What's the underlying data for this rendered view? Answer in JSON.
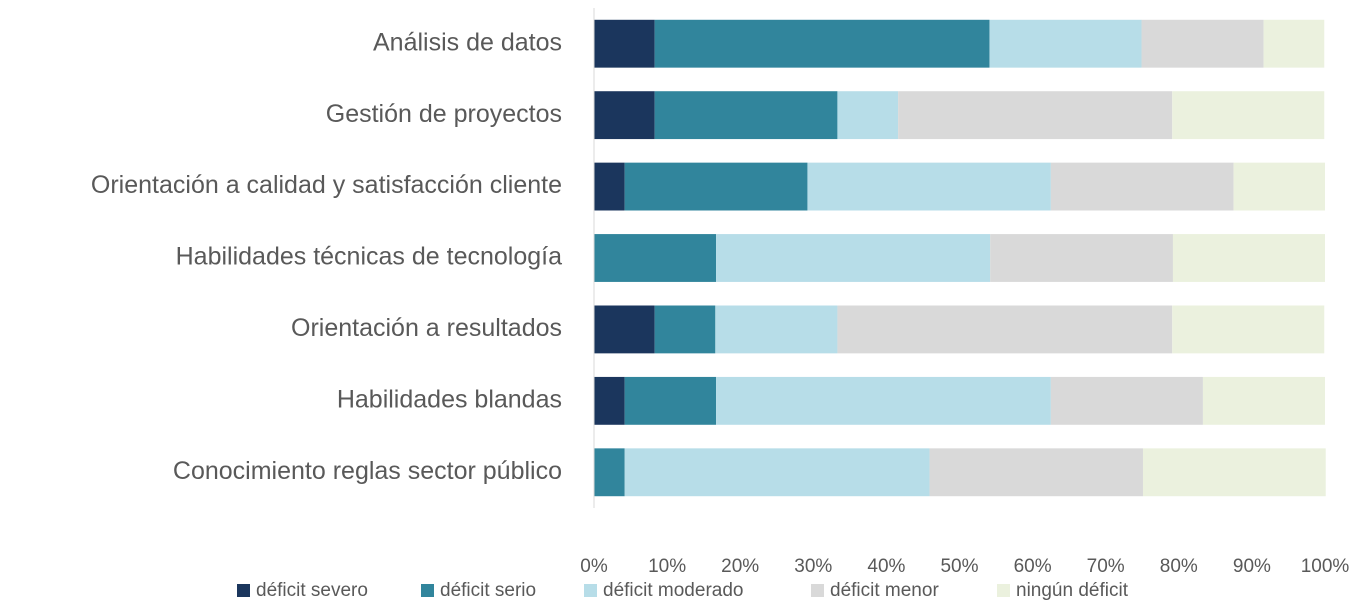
{
  "chart_data": {
    "type": "stacked_barh",
    "categories": [
      "Análisis de datos",
      "Gestión de proyectos",
      "Orientación a calidad y satisfacción cliente",
      "Habilidades técnicas de tecnología",
      "Orientación a resultados",
      "Habilidades blandas",
      "Conocimiento reglas sector público"
    ],
    "series": [
      {
        "name": "déficit severo",
        "color": "#1b365d",
        "values": [
          8.3,
          8.3,
          4.2,
          0,
          8.3,
          4.2,
          0
        ]
      },
      {
        "name": "déficit serio",
        "color": "#31859c",
        "values": [
          45.8,
          25,
          25,
          16.7,
          8.3,
          12.5,
          4.2
        ]
      },
      {
        "name": "déficit moderado",
        "color": "#b7dde8",
        "values": [
          20.8,
          8.3,
          33.3,
          37.5,
          16.7,
          45.8,
          41.7
        ]
      },
      {
        "name": "déficit menor",
        "color": "#d9d9d9",
        "values": [
          16.7,
          37.5,
          25,
          25,
          45.8,
          20.8,
          29.2
        ]
      },
      {
        "name": "ningún déficit",
        "color": "#ebf1de",
        "values": [
          8.3,
          20.8,
          12.5,
          20.8,
          20.8,
          16.7,
          25
        ]
      }
    ],
    "xlim": [
      0,
      100
    ],
    "xticks": [
      {
        "value": 0,
        "label": "0%"
      },
      {
        "value": 10,
        "label": "10%"
      },
      {
        "value": 20,
        "label": "20%"
      },
      {
        "value": 30,
        "label": "30%"
      },
      {
        "value": 40,
        "label": "40%"
      },
      {
        "value": 50,
        "label": "50%"
      },
      {
        "value": 60,
        "label": "60%"
      },
      {
        "value": 70,
        "label": "70%"
      },
      {
        "value": 80,
        "label": "80%"
      },
      {
        "value": 90,
        "label": "90%"
      },
      {
        "value": 100,
        "label": "100%"
      }
    ],
    "legend": "bottom"
  }
}
